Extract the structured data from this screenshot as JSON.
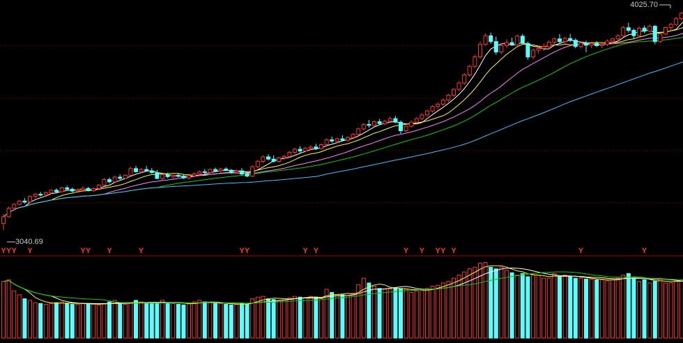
{
  "chart_data": [
    {
      "type": "candlestick",
      "title": "",
      "labels": {
        "high": "4025.70",
        "low": "3040.69"
      },
      "marker_symbol": "Y",
      "price_range": [
        3040.69,
        4025.7
      ],
      "grid": "dotted",
      "colors": {
        "up": "#ff3232",
        "down": "#54ffff",
        "ma5": "#ffffff",
        "ma10": "#ffff00",
        "ma20": "#ff80ff",
        "ma30": "#00d000",
        "ma60": "#38c0ff",
        "grid": "#8b0000",
        "marker": "#ff3232",
        "label": "#c8c8c8"
      },
      "ohlc": [
        [
          3070,
          3112,
          3040.69,
          3100
        ],
        [
          3100,
          3145,
          3095,
          3138
        ],
        [
          3138,
          3160,
          3125,
          3155
        ],
        [
          3155,
          3175,
          3150,
          3170
        ],
        [
          3170,
          3182,
          3158,
          3165
        ],
        [
          3165,
          3195,
          3160,
          3190
        ],
        [
          3190,
          3205,
          3182,
          3200
        ],
        [
          3200,
          3210,
          3190,
          3196
        ],
        [
          3196,
          3212,
          3190,
          3206
        ],
        [
          3206,
          3222,
          3200,
          3218
        ],
        [
          3218,
          3226,
          3206,
          3211
        ],
        [
          3211,
          3232,
          3208,
          3228
        ],
        [
          3228,
          3238,
          3216,
          3222
        ],
        [
          3222,
          3230,
          3208,
          3214
        ],
        [
          3214,
          3226,
          3206,
          3219
        ],
        [
          3219,
          3236,
          3212,
          3226
        ],
        [
          3226,
          3232,
          3212,
          3216
        ],
        [
          3216,
          3230,
          3210,
          3225
        ],
        [
          3225,
          3245,
          3220,
          3240
        ],
        [
          3240,
          3272,
          3235,
          3265
        ],
        [
          3265,
          3275,
          3248,
          3255
        ],
        [
          3255,
          3282,
          3250,
          3276
        ],
        [
          3276,
          3288,
          3264,
          3270
        ],
        [
          3270,
          3288,
          3266,
          3284
        ],
        [
          3284,
          3322,
          3280,
          3314
        ],
        [
          3314,
          3326,
          3296,
          3300
        ],
        [
          3300,
          3316,
          3292,
          3310
        ],
        [
          3310,
          3326,
          3300,
          3304
        ],
        [
          3304,
          3316,
          3292,
          3296
        ],
        [
          3296,
          3308,
          3266,
          3270
        ],
        [
          3270,
          3292,
          3262,
          3286
        ],
        [
          3286,
          3296,
          3272,
          3278
        ],
        [
          3278,
          3288,
          3268,
          3284
        ],
        [
          3284,
          3294,
          3274,
          3280
        ],
        [
          3280,
          3290,
          3268,
          3272
        ],
        [
          3272,
          3286,
          3264,
          3282
        ],
        [
          3282,
          3296,
          3276,
          3290
        ],
        [
          3290,
          3306,
          3284,
          3300
        ],
        [
          3300,
          3312,
          3290,
          3296
        ],
        [
          3296,
          3314,
          3292,
          3310
        ],
        [
          3310,
          3318,
          3298,
          3304
        ],
        [
          3304,
          3318,
          3296,
          3312
        ],
        [
          3312,
          3320,
          3302,
          3306
        ],
        [
          3306,
          3312,
          3290,
          3298
        ],
        [
          3298,
          3310,
          3292,
          3304
        ],
        [
          3304,
          3316,
          3282,
          3290
        ],
        [
          3290,
          3300,
          3276,
          3280
        ],
        [
          3280,
          3328,
          3276,
          3322
        ],
        [
          3322,
          3352,
          3316,
          3346
        ],
        [
          3346,
          3372,
          3338,
          3366
        ],
        [
          3366,
          3378,
          3350,
          3356
        ],
        [
          3356,
          3372,
          3340,
          3346
        ],
        [
          3346,
          3366,
          3340,
          3362
        ],
        [
          3362,
          3375,
          3352,
          3368
        ],
        [
          3368,
          3392,
          3362,
          3386
        ],
        [
          3386,
          3406,
          3378,
          3400
        ],
        [
          3400,
          3414,
          3384,
          3392
        ],
        [
          3392,
          3410,
          3386,
          3404
        ],
        [
          3404,
          3418,
          3396,
          3410
        ],
        [
          3410,
          3424,
          3396,
          3402
        ],
        [
          3402,
          3426,
          3398,
          3420
        ],
        [
          3420,
          3448,
          3412,
          3442
        ],
        [
          3442,
          3456,
          3428,
          3436
        ],
        [
          3436,
          3452,
          3426,
          3446
        ],
        [
          3446,
          3462,
          3438,
          3440
        ],
        [
          3440,
          3458,
          3434,
          3452
        ],
        [
          3452,
          3472,
          3446,
          3466
        ],
        [
          3466,
          3496,
          3460,
          3490
        ],
        [
          3490,
          3516,
          3482,
          3510
        ],
        [
          3510,
          3530,
          3496,
          3506
        ],
        [
          3506,
          3528,
          3500,
          3522
        ],
        [
          3522,
          3534,
          3508,
          3514
        ],
        [
          3514,
          3530,
          3506,
          3524
        ],
        [
          3524,
          3546,
          3518,
          3536
        ],
        [
          3536,
          3548,
          3516,
          3520
        ],
        [
          3520,
          3528,
          3468,
          3482
        ],
        [
          3482,
          3506,
          3476,
          3502
        ],
        [
          3502,
          3528,
          3496,
          3520
        ],
        [
          3520,
          3542,
          3514,
          3536
        ],
        [
          3536,
          3560,
          3530,
          3552
        ],
        [
          3552,
          3576,
          3544,
          3570
        ],
        [
          3570,
          3596,
          3562,
          3590
        ],
        [
          3590,
          3608,
          3576,
          3600
        ],
        [
          3600,
          3624,
          3592,
          3618
        ],
        [
          3618,
          3646,
          3610,
          3640
        ],
        [
          3640,
          3672,
          3632,
          3666
        ],
        [
          3666,
          3702,
          3658,
          3694
        ],
        [
          3694,
          3738,
          3686,
          3730
        ],
        [
          3730,
          3776,
          3722,
          3768
        ],
        [
          3768,
          3820,
          3760,
          3810
        ],
        [
          3810,
          3878,
          3802,
          3866
        ],
        [
          3866,
          3915,
          3858,
          3904
        ],
        [
          3904,
          3918,
          3868,
          3878
        ],
        [
          3878,
          3900,
          3820,
          3832
        ],
        [
          3832,
          3868,
          3824,
          3860
        ],
        [
          3860,
          3888,
          3848,
          3874
        ],
        [
          3874,
          3896,
          3860,
          3864
        ],
        [
          3864,
          3910,
          3858,
          3902
        ],
        [
          3902,
          3912,
          3864,
          3870
        ],
        [
          3870,
          3878,
          3798,
          3810
        ],
        [
          3810,
          3848,
          3800,
          3840
        ],
        [
          3840,
          3862,
          3824,
          3848
        ],
        [
          3848,
          3870,
          3836,
          3856
        ],
        [
          3856,
          3884,
          3846,
          3876
        ],
        [
          3876,
          3896,
          3862,
          3890
        ],
        [
          3890,
          3912,
          3870,
          3878
        ],
        [
          3878,
          3900,
          3864,
          3892
        ],
        [
          3892,
          3912,
          3876,
          3884
        ],
        [
          3884,
          3892,
          3848,
          3856
        ],
        [
          3856,
          3880,
          3848,
          3872
        ],
        [
          3872,
          3882,
          3830,
          3862
        ],
        [
          3862,
          3878,
          3850,
          3870
        ],
        [
          3870,
          3880,
          3854,
          3860
        ],
        [
          3860,
          3872,
          3848,
          3866
        ],
        [
          3866,
          3888,
          3858,
          3880
        ],
        [
          3880,
          3896,
          3866,
          3890
        ],
        [
          3890,
          3912,
          3878,
          3904
        ],
        [
          3904,
          3948,
          3898,
          3940
        ],
        [
          3940,
          3962,
          3918,
          3928
        ],
        [
          3928,
          3936,
          3890,
          3904
        ],
        [
          3904,
          3946,
          3896,
          3938
        ],
        [
          3938,
          3950,
          3916,
          3924
        ],
        [
          3924,
          3954,
          3918,
          3946
        ],
        [
          3946,
          3952,
          3866,
          3878
        ],
        [
          3878,
          3918,
          3872,
          3912
        ],
        [
          3912,
          3946,
          3906,
          3940
        ],
        [
          3940,
          3962,
          3930,
          3954
        ],
        [
          3954,
          3988,
          3948,
          3980
        ],
        [
          3980,
          4010,
          3972,
          4004
        ],
        [
          4004,
          4025.7,
          3992,
          4014
        ],
        [
          4014,
          4020,
          3984,
          3992
        ]
      ],
      "signal_bars": [
        0,
        1,
        2,
        5,
        15,
        16,
        20,
        26,
        45,
        46,
        57,
        59,
        76,
        79,
        82,
        83,
        85,
        109,
        121
      ],
      "volume": [
        72,
        74,
        60,
        55,
        50,
        48,
        45,
        44,
        43,
        44,
        45,
        46,
        44,
        43,
        43,
        44,
        44,
        43,
        42,
        44,
        46,
        48,
        44,
        43,
        44,
        48,
        46,
        45,
        44,
        44,
        48,
        45,
        44,
        43,
        42,
        44,
        46,
        48,
        46,
        45,
        44,
        44,
        43,
        42,
        43,
        44,
        43,
        50,
        52,
        53,
        50,
        49,
        48,
        50,
        51,
        53,
        52,
        51,
        53,
        52,
        50,
        62,
        58,
        55,
        55,
        54,
        57,
        68,
        76,
        70,
        66,
        63,
        62,
        62,
        64,
        63,
        62,
        58,
        60,
        61,
        63,
        66,
        67,
        70,
        72,
        76,
        80,
        84,
        88,
        90,
        95,
        96,
        90,
        88,
        90,
        86,
        83,
        80,
        82,
        78,
        80,
        80,
        76,
        76,
        82,
        78,
        80,
        78,
        76,
        76,
        75,
        75,
        74,
        74,
        73,
        74,
        76,
        80,
        82,
        76,
        72,
        74,
        70,
        72,
        76,
        70,
        70,
        72,
        74,
        72,
        73
      ],
      "volume_range": [
        0,
        100
      ]
    }
  ]
}
